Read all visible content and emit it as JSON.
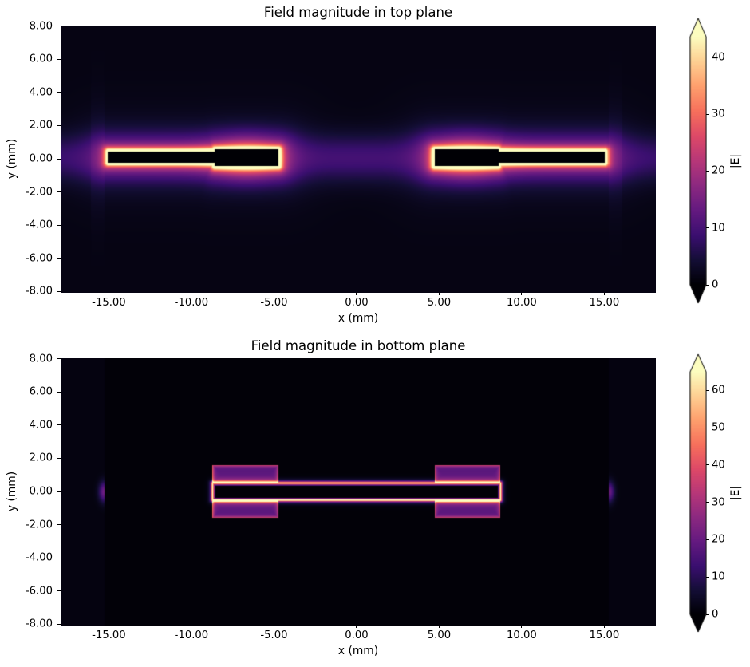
{
  "figure": {
    "background": "#ffffff"
  },
  "colormap": {
    "name": "magma",
    "stops": [
      [
        0.0,
        "#000004"
      ],
      [
        0.1,
        "#140e36"
      ],
      [
        0.2,
        "#3b0f70"
      ],
      [
        0.3,
        "#641a80"
      ],
      [
        0.4,
        "#8c2981"
      ],
      [
        0.5,
        "#b73779"
      ],
      [
        0.6,
        "#de4968"
      ],
      [
        0.7,
        "#f7705c"
      ],
      [
        0.8,
        "#fe9f6d"
      ],
      [
        0.9,
        "#fecf92"
      ],
      [
        1.0,
        "#fcfdbf"
      ]
    ]
  },
  "chart_data": [
    {
      "type": "heatmap",
      "title": "Field magnitude in top plane",
      "xlabel": "x (mm)",
      "ylabel": "y (mm)",
      "colorbar_label": "|E|",
      "xlim": [
        -17.92,
        18.12
      ],
      "ylim": [
        -8.07,
        8.07
      ],
      "xticks": [
        -15,
        -10,
        -5,
        0,
        5,
        10,
        15
      ],
      "yticks": [
        8,
        6,
        4,
        2,
        0,
        -2,
        -4,
        -6,
        -8
      ],
      "colorbar_ticks": [
        0,
        10,
        20,
        30,
        40
      ],
      "colorbar_extend": "both",
      "vmin": 0,
      "vmax": 43.6,
      "geometry": {
        "base": 1.3,
        "metal_rects": [
          [
            -15.05,
            -0.22,
            -8.55,
            0.48
          ],
          [
            -8.58,
            -0.42,
            -4.72,
            0.58
          ],
          [
            4.72,
            -0.42,
            8.58,
            0.58
          ],
          [
            8.55,
            -0.22,
            15.05,
            0.48
          ]
        ],
        "edge_glow": {
          "amp1": 48,
          "s1": 0.16,
          "amp2": 15,
          "s2": 0.85
        },
        "band": {
          "amp": 6.8,
          "y0": 0.08,
          "sy": 1.35
        },
        "center_bump": {
          "amp": 1.5,
          "sx": 3.2,
          "sy": 1.6
        },
        "bulges": {
          "amp": 11,
          "xc": 6.65,
          "sx": 2.1,
          "yc": 0.08,
          "sy": 1.35
        },
        "substrate_edge": {
          "x": 15.28,
          "x2": 16.1,
          "amp": 1.3,
          "sy": 3.5
        }
      }
    },
    {
      "type": "heatmap",
      "title": "Field magnitude in bottom plane",
      "xlabel": "x (mm)",
      "ylabel": "y (mm)",
      "colorbar_label": "|E|",
      "xlim": [
        -17.92,
        18.12
      ],
      "ylim": [
        -8.07,
        8.07
      ],
      "xticks": [
        -15,
        -10,
        -5,
        0,
        5,
        10,
        15
      ],
      "yticks": [
        8,
        6,
        4,
        2,
        0,
        -2,
        -4,
        -6,
        -8
      ],
      "colorbar_ticks": [
        0,
        10,
        20,
        30,
        40,
        50,
        60
      ],
      "colorbar_extend": "both",
      "vmin": 0,
      "vmax": 65,
      "geometry": {
        "base": 0.55,
        "slot": {
          "x0": -8.72,
          "y0": -0.5,
          "x1": 8.72,
          "y1": 0.53,
          "line_amp": 80,
          "line_s": 0.085,
          "interior_depth": 0.16,
          "interior_v": 0.35
        },
        "pads": [
          [
            -8.72,
            0.53,
            -4.72,
            1.62
          ],
          [
            -8.72,
            -1.57,
            -4.72,
            -0.5
          ],
          [
            4.72,
            0.53,
            8.72,
            1.62
          ],
          [
            4.72,
            -1.57,
            8.72,
            -0.5
          ]
        ],
        "pad_base": 21,
        "pad_grad": 0.3,
        "pad_edge_amp": 26,
        "pad_edge_s": 0.1,
        "ground_edge": {
          "x": 15.28,
          "haze": 1.5,
          "blob_amp": 20,
          "blob_sx": 0.32,
          "blob_sy": 0.6
        }
      }
    }
  ]
}
